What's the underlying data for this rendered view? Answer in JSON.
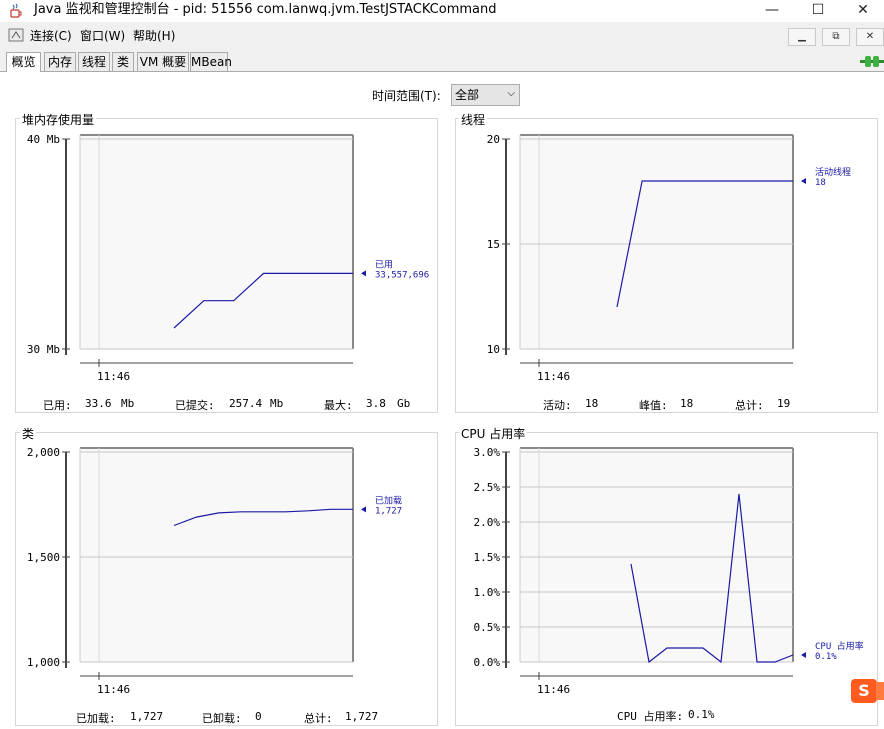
{
  "window": {
    "title": "Java 监视和管理控制台 - pid: 51556 com.lanwq.jvm.TestJSTACKCommand",
    "min_glyph": "—",
    "max_glyph": "☐",
    "close_glyph": "✕"
  },
  "menu": {
    "items": [
      "连接(C)",
      "窗口(W)",
      "帮助(H)"
    ],
    "inner_min": "▁",
    "inner_restore": "⧉",
    "inner_close": "✕"
  },
  "tabs": [
    "概览",
    "内存",
    "线程",
    "类",
    "VM 概要",
    "MBean"
  ],
  "active_tab": "概览",
  "time_range": {
    "label": "时间范围(T):",
    "value": "全部"
  },
  "charts": {
    "heap": {
      "title": "堆内存使用量",
      "y_ticks": [
        "40 Mb",
        "30 Mb"
      ],
      "x_tick": "11:46",
      "legend_name": "已用",
      "legend_value": "33,557,696",
      "summary": [
        "已用:",
        "33.6",
        "Mb",
        "已提交:",
        "257.4",
        "Mb",
        "最大:",
        "3.8",
        "Gb"
      ]
    },
    "threads": {
      "title": "线程",
      "y_ticks": [
        "20",
        "15",
        "10"
      ],
      "x_tick": "11:46",
      "legend_name": "活动线程",
      "legend_value": "18",
      "summary": [
        "活动:",
        "18",
        "峰值:",
        "18",
        "总计:",
        "19"
      ]
    },
    "classes": {
      "title": "类",
      "y_ticks": [
        "2,000",
        "1,500",
        "1,000"
      ],
      "x_tick": "11:46",
      "legend_name": "已加载",
      "legend_value": "1,727",
      "summary": [
        "已加载:",
        "1,727",
        "已卸载:",
        "0",
        "总计:",
        "1,727"
      ]
    },
    "cpu": {
      "title": "CPU 占用率",
      "y_ticks": [
        "3.0%",
        "2.5%",
        "2.0%",
        "1.5%",
        "1.0%",
        "0.5%",
        "0.0%"
      ],
      "x_tick": "11:46",
      "legend_name": "CPU 占用率",
      "legend_value": "0.1%",
      "summary": [
        "CPU 占用率:",
        "0.1%"
      ]
    }
  },
  "chart_data": [
    {
      "type": "line",
      "title": "堆内存使用量",
      "ylim": [
        30,
        40
      ],
      "y_unit": "Mb",
      "series": [
        {
          "name": "已用",
          "values": [
            31.0,
            32.3,
            32.3,
            33.6,
            33.6,
            33.6,
            33.6
          ]
        }
      ],
      "color": "#1a1aa6"
    },
    {
      "type": "line",
      "title": "线程",
      "ylim": [
        10,
        20
      ],
      "series": [
        {
          "name": "活动线程",
          "values": [
            12,
            18,
            18,
            18,
            18,
            18,
            18,
            18
          ]
        }
      ],
      "color": "#1a1aa6"
    },
    {
      "type": "line",
      "title": "类",
      "ylim": [
        1000,
        2000
      ],
      "series": [
        {
          "name": "已加载",
          "values": [
            1650,
            1690,
            1710,
            1715,
            1715,
            1715,
            1720,
            1727,
            1727
          ]
        }
      ],
      "color": "#1a1aa6"
    },
    {
      "type": "line",
      "title": "CPU 占用率",
      "ylim": [
        0,
        3.0
      ],
      "y_unit": "%",
      "series": [
        {
          "name": "CPU 占用率",
          "values": [
            1.4,
            0.0,
            0.2,
            0.2,
            0.2,
            0.0,
            2.4,
            0.0,
            0.0,
            0.1
          ]
        }
      ],
      "color": "#1a1aa6"
    }
  ],
  "colors": {
    "line": "#1a1aa6",
    "plot_bg": "#f8f8f8",
    "grid": "#c8c8c8",
    "axis": "#444444"
  },
  "icons": [
    "java-cup-icon",
    "connect-icon",
    "connection-plug-icon",
    "sogou-ime-icon"
  ],
  "sogou_glyph": "S"
}
